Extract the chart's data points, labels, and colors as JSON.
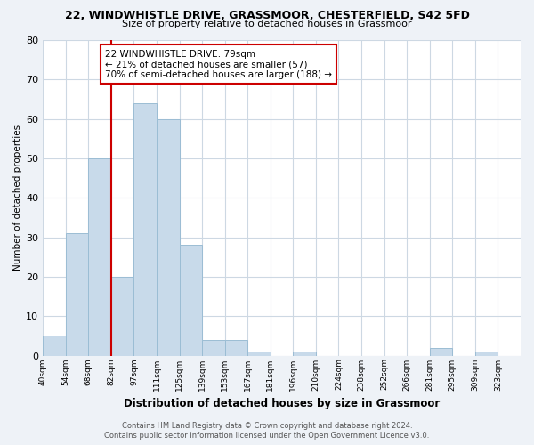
{
  "title1": "22, WINDWHISTLE DRIVE, GRASSMOOR, CHESTERFIELD, S42 5FD",
  "title2": "Size of property relative to detached houses in Grassmoor",
  "xlabel": "Distribution of detached houses by size in Grassmoor",
  "ylabel": "Number of detached properties",
  "bar_labels": [
    "40sqm",
    "54sqm",
    "68sqm",
    "82sqm",
    "97sqm",
    "111sqm",
    "125sqm",
    "139sqm",
    "153sqm",
    "167sqm",
    "181sqm",
    "196sqm",
    "210sqm",
    "224sqm",
    "238sqm",
    "252sqm",
    "266sqm",
    "281sqm",
    "295sqm",
    "309sqm",
    "323sqm"
  ],
  "bar_values": [
    5,
    31,
    50,
    20,
    64,
    60,
    28,
    4,
    4,
    1,
    0,
    1,
    0,
    0,
    0,
    0,
    0,
    2,
    0,
    1,
    0
  ],
  "bar_color": "#c8daea",
  "bar_edge_color": "#9bbdd4",
  "ylim": [
    0,
    80
  ],
  "yticks": [
    0,
    10,
    20,
    30,
    40,
    50,
    60,
    70,
    80
  ],
  "annotation_title": "22 WINDWHISTLE DRIVE: 79sqm",
  "annotation_line1": "← 21% of detached houses are smaller (57)",
  "annotation_line2": "70% of semi-detached houses are larger (188) →",
  "annotation_box_color": "#ffffff",
  "annotation_box_edge": "#cc0000",
  "vline_color": "#cc0000",
  "footer1": "Contains HM Land Registry data © Crown copyright and database right 2024.",
  "footer2": "Contains public sector information licensed under the Open Government Licence v3.0.",
  "bg_color": "#eef2f7",
  "plot_bg_color": "#ffffff",
  "grid_color": "#cdd8e3"
}
